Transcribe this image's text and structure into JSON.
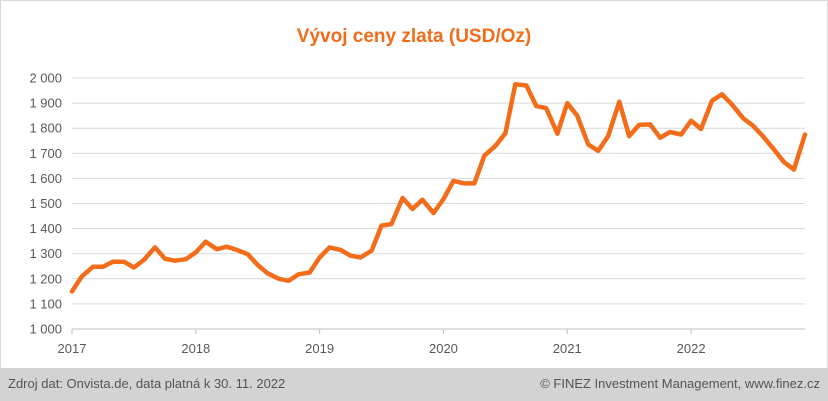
{
  "chart_data": {
    "type": "line",
    "title": "Vývoj ceny zlata (USD/Oz)",
    "xlabel": "",
    "ylabel": "",
    "ylim": [
      1000,
      2000
    ],
    "yticks": [
      1000,
      1100,
      1200,
      1300,
      1400,
      1500,
      1600,
      1700,
      1800,
      1900,
      2000
    ],
    "ytick_labels": [
      "1 000",
      "1 100",
      "1 200",
      "1 300",
      "1 400",
      "1 500",
      "1 600",
      "1 700",
      "1 800",
      "1 900",
      "2 000"
    ],
    "xlim": [
      2017.0,
      2022.92
    ],
    "xtick_labels": [
      "2017",
      "2018",
      "2019",
      "2020",
      "2021",
      "2022"
    ],
    "grid": "horizontal",
    "legend": "none",
    "series": [
      {
        "color": "#f26c1a",
        "x": [
          2017.0,
          2017.08,
          2017.17,
          2017.25,
          2017.33,
          2017.42,
          2017.5,
          2017.58,
          2017.67,
          2017.75,
          2017.83,
          2017.92,
          2018.0,
          2018.08,
          2018.17,
          2018.25,
          2018.33,
          2018.42,
          2018.5,
          2018.58,
          2018.67,
          2018.75,
          2018.83,
          2018.92,
          2019.0,
          2019.08,
          2019.17,
          2019.25,
          2019.33,
          2019.42,
          2019.5,
          2019.58,
          2019.67,
          2019.75,
          2019.83,
          2019.92,
          2020.0,
          2020.08,
          2020.17,
          2020.25,
          2020.33,
          2020.42,
          2020.5,
          2020.58,
          2020.67,
          2020.75,
          2020.83,
          2020.92,
          2021.0,
          2021.08,
          2021.17,
          2021.25,
          2021.33,
          2021.42,
          2021.5,
          2021.58,
          2021.67,
          2021.75,
          2021.83,
          2021.92,
          2022.0,
          2022.08,
          2022.17,
          2022.25,
          2022.33,
          2022.42,
          2022.5,
          2022.58,
          2022.67,
          2022.75,
          2022.83,
          2022.92
        ],
        "y": [
          1150,
          1210,
          1248,
          1248,
          1268,
          1268,
          1245,
          1275,
          1325,
          1280,
          1272,
          1278,
          1305,
          1348,
          1318,
          1328,
          1315,
          1298,
          1255,
          1222,
          1200,
          1192,
          1218,
          1225,
          1285,
          1325,
          1315,
          1292,
          1285,
          1312,
          1412,
          1418,
          1522,
          1478,
          1515,
          1462,
          1518,
          1590,
          1580,
          1580,
          1690,
          1730,
          1780,
          1975,
          1970,
          1888,
          1880,
          1778,
          1900,
          1850,
          1735,
          1710,
          1768,
          1905,
          1768,
          1813,
          1815,
          1762,
          1785,
          1775,
          1830,
          1797,
          1910,
          1935,
          1895,
          1840,
          1810,
          1768,
          1715,
          1665,
          1635,
          1775
        ]
      }
    ]
  },
  "footer": {
    "source": "Zdroj dat: Onvista.de, data platná k 30. 11. 2022",
    "copyright": "© FINEZ Investment Management, www.finez.cz"
  }
}
